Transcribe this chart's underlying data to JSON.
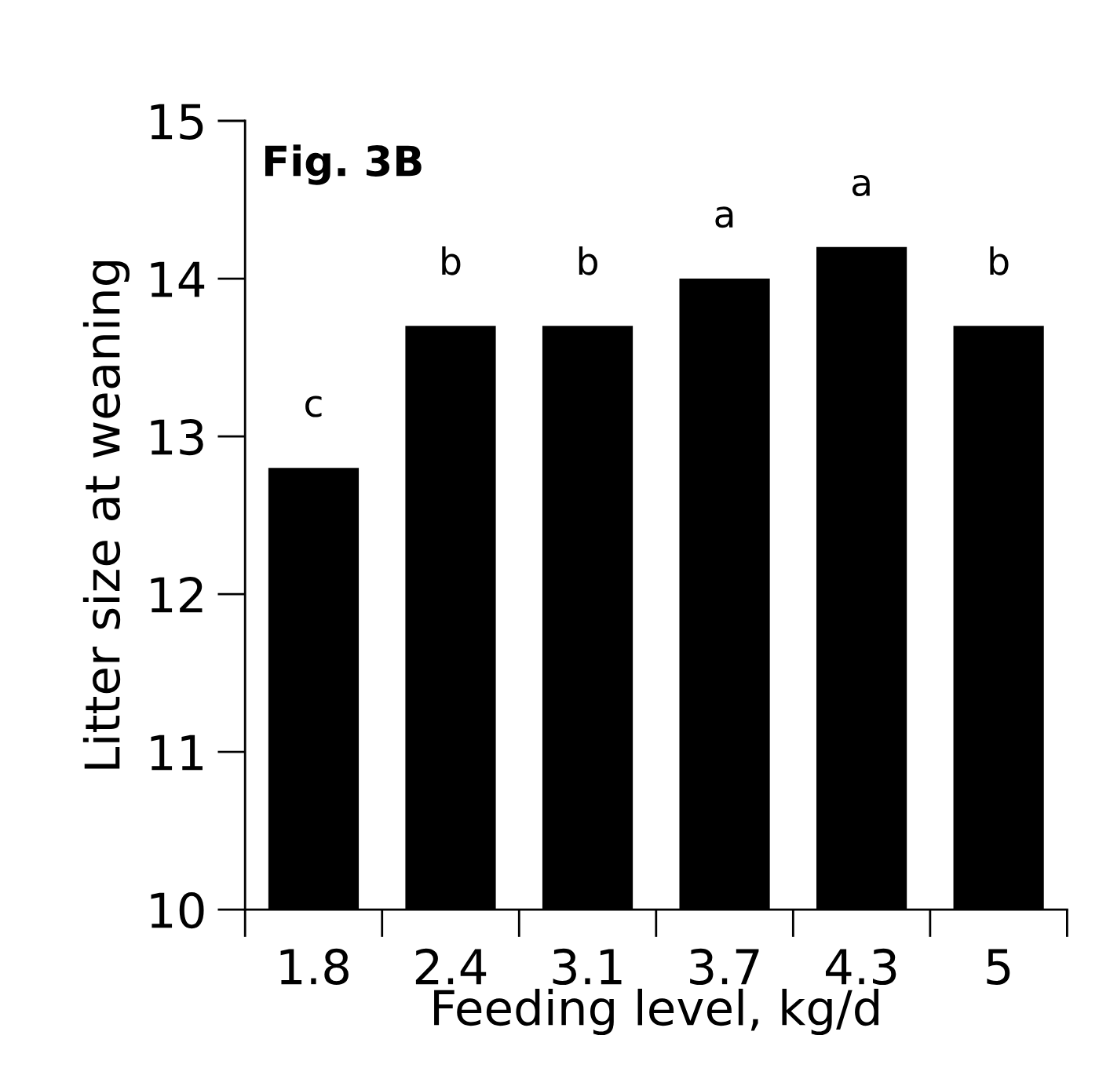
{
  "chart_data": {
    "type": "bar",
    "title": "Fig. 3B",
    "xlabel": "Feeding level, kg/d",
    "ylabel": "Litter size at weaning",
    "categories": [
      "1.8",
      "2.4",
      "3.1",
      "3.7",
      "4.3",
      "5"
    ],
    "values": [
      12.8,
      13.7,
      13.7,
      14.0,
      14.2,
      13.7
    ],
    "value_labels": [
      "c",
      "b",
      "b",
      "a",
      "a",
      "b"
    ],
    "color": "#000000",
    "ylim": [
      10,
      15
    ],
    "yticks": [
      10,
      11,
      12,
      13,
      14,
      15
    ],
    "grid": false,
    "legend": false
  }
}
